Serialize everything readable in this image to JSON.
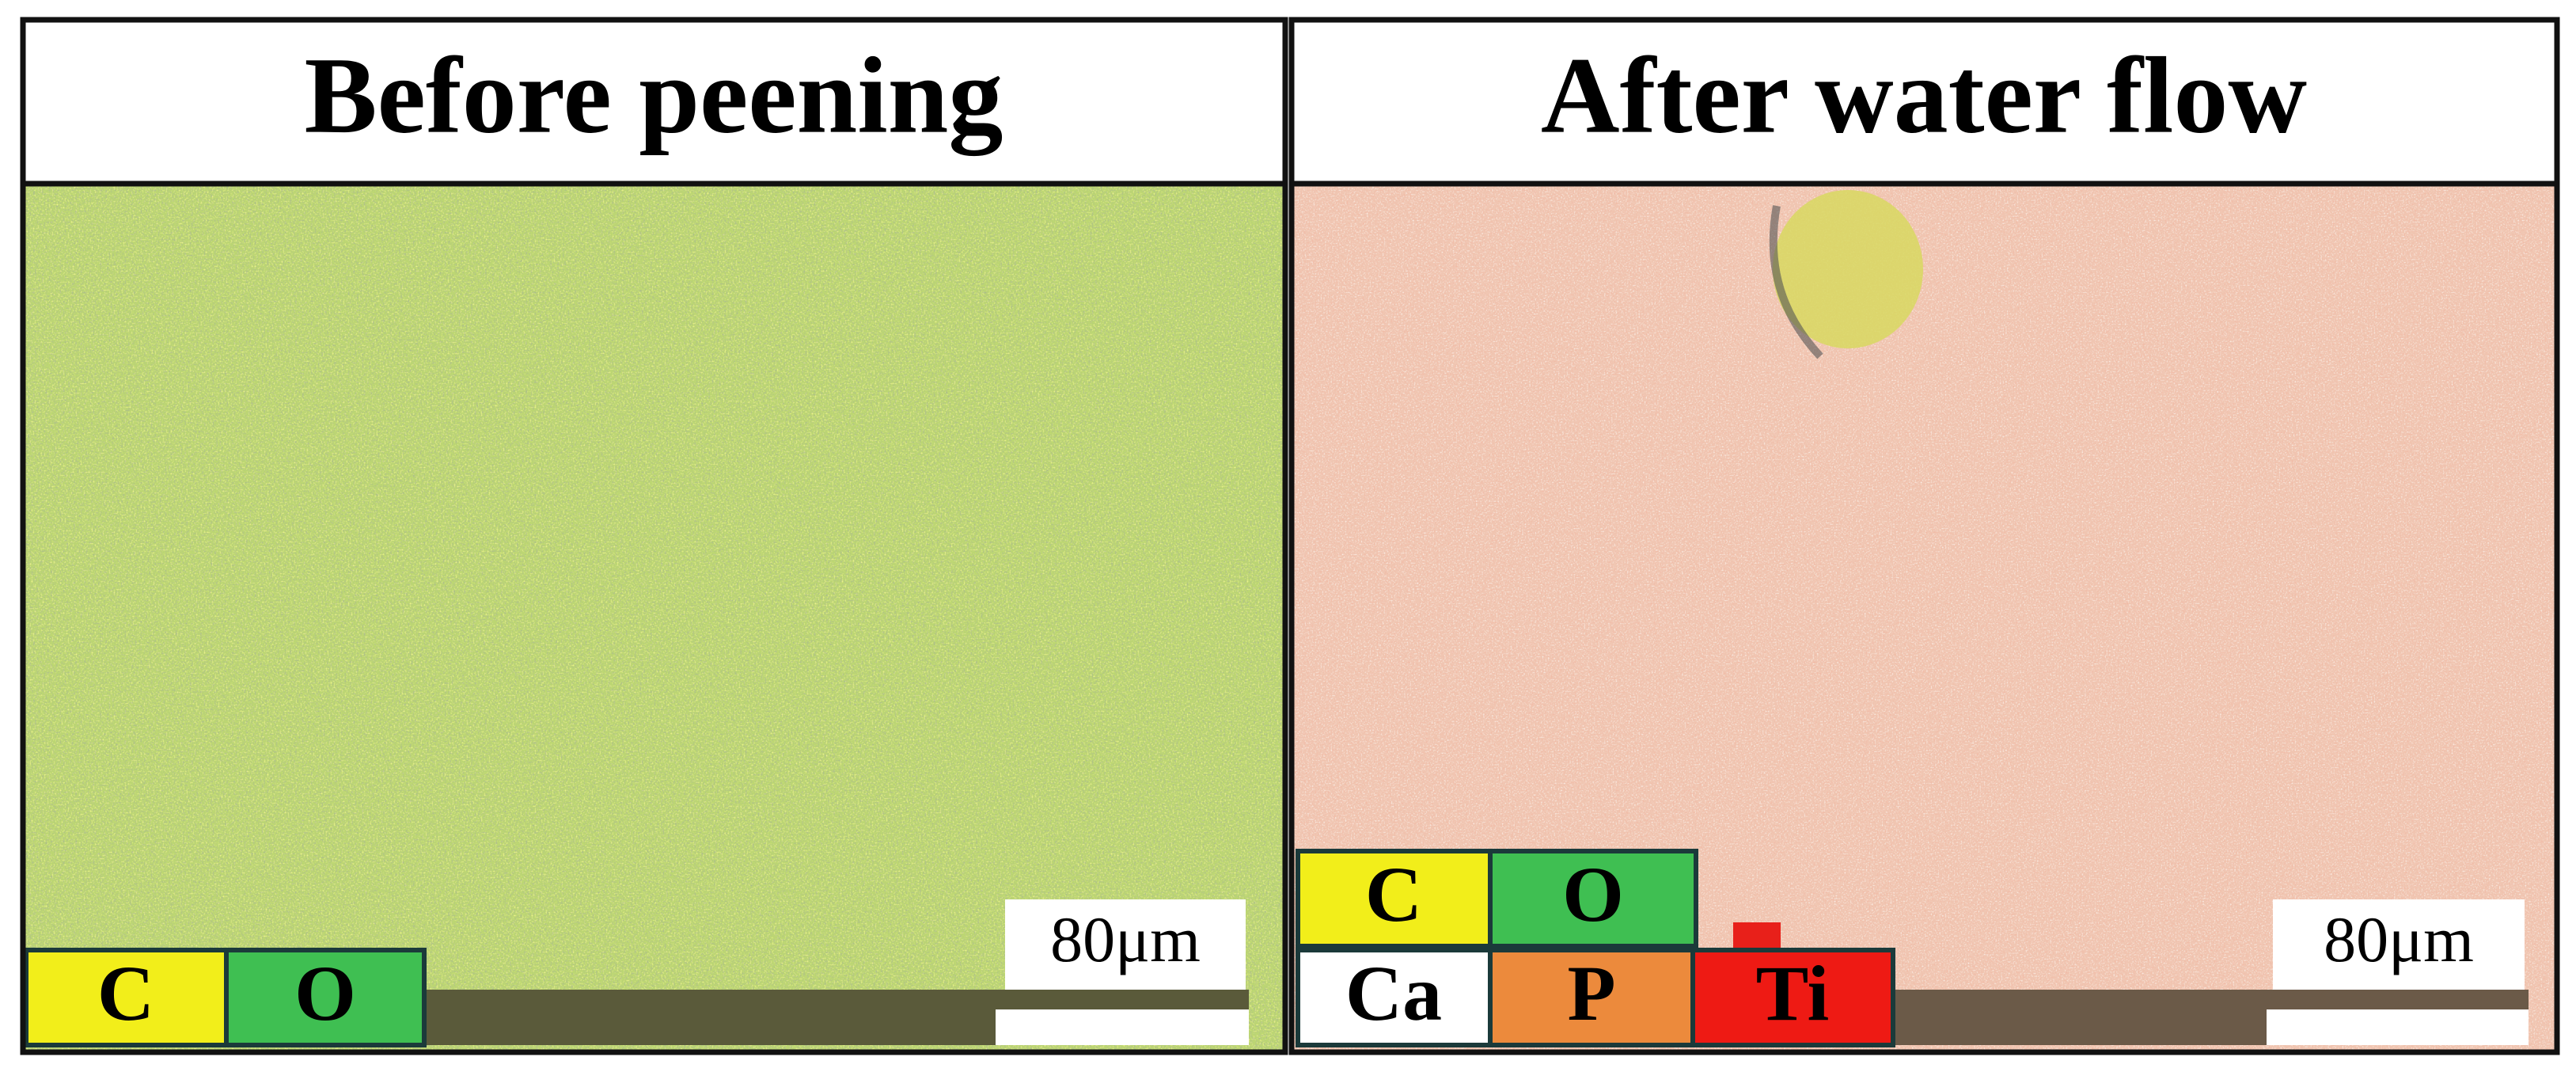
{
  "panels": [
    {
      "title": "Before peening",
      "legend": [
        "C",
        "O"
      ],
      "scale_bar": "80μm"
    },
    {
      "title": "After water flow",
      "legend": [
        "C",
        "O",
        "Ca",
        "P",
        "Ti"
      ],
      "scale_bar": "80μm"
    }
  ]
}
